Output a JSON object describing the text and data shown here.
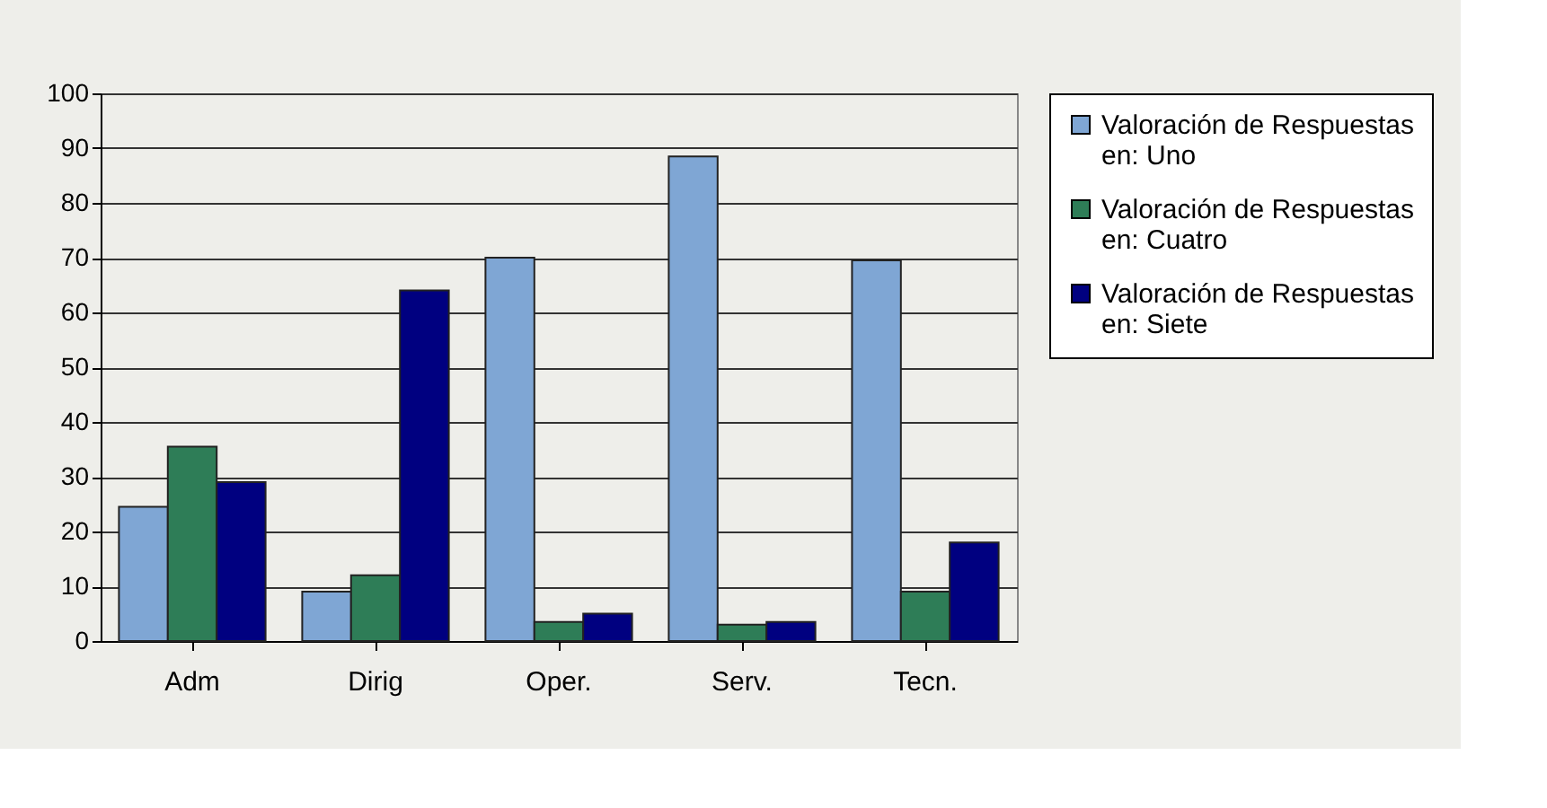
{
  "chart_data": {
    "type": "bar",
    "categories": [
      "Adm",
      "Dirig",
      "Oper.",
      "Serv.",
      "Tecn."
    ],
    "series": [
      {
        "name": "Valoración de Respuestas en: Uno",
        "color": "#7fa6d4",
        "values": [
          24.5,
          9,
          70,
          88.5,
          69.5
        ]
      },
      {
        "name": "Valoración de Respuestas en: Cuatro",
        "color": "#2e7d57",
        "values": [
          35.5,
          12,
          3.5,
          3,
          9
        ]
      },
      {
        "name": "Valoración de Respuestas en: Siete",
        "color": "#000080",
        "values": [
          29,
          64,
          5,
          3.5,
          18
        ]
      }
    ],
    "ylim": [
      0,
      100
    ],
    "yticks": [
      0,
      10,
      20,
      30,
      40,
      50,
      60,
      70,
      80,
      90,
      100
    ],
    "grid": "y",
    "legend": "right"
  }
}
